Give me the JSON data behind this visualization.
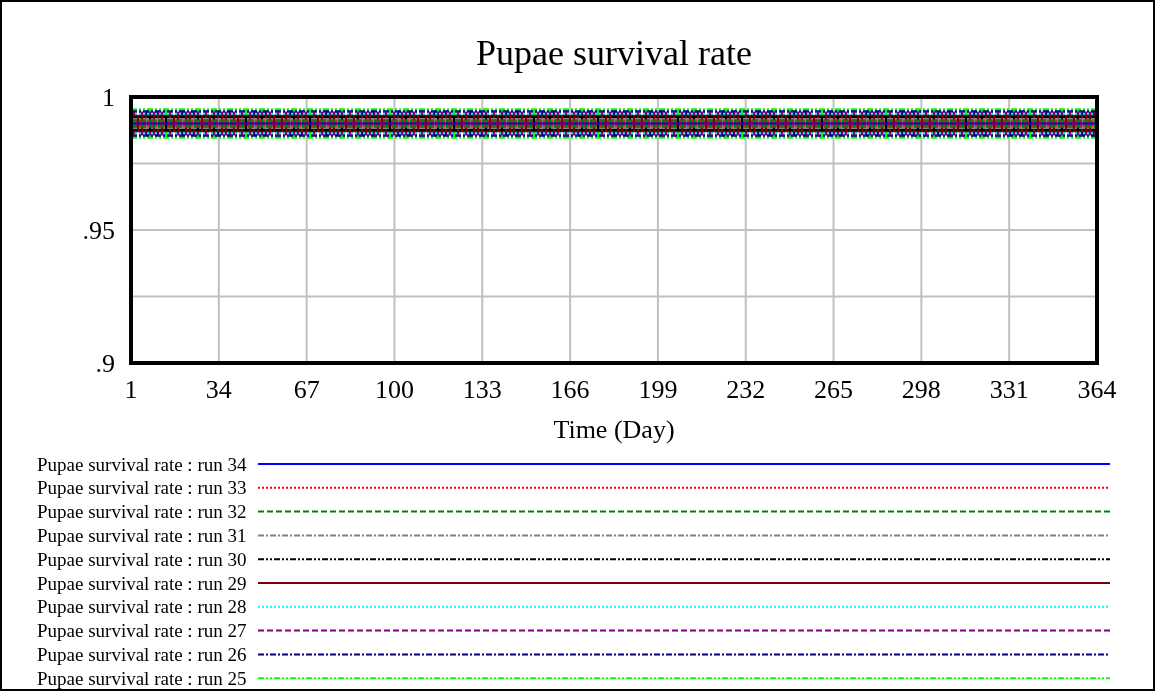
{
  "chart_data": {
    "type": "line",
    "title": "Pupae survival rate",
    "xlabel": "Time (Day)",
    "xlim": [
      1,
      364
    ],
    "xticks": [
      1,
      34,
      67,
      100,
      133,
      166,
      199,
      232,
      265,
      298,
      331,
      364
    ],
    "ylim": [
      0.9,
      1
    ],
    "yticks": [
      {
        "value": 0.9,
        "label": ".9"
      },
      {
        "value": 0.925,
        "label": null
      },
      {
        "value": 0.95,
        "label": ".95"
      },
      {
        "value": 0.975,
        "label": null
      },
      1
    ],
    "grid": true,
    "legend": "bottom",
    "x": [
      1,
      364
    ],
    "series": [
      {
        "name": "Pupae survival rate : run 34",
        "color": "#0000ff",
        "line_style": "solid",
        "values": [
          0.99,
          0.99
        ]
      },
      {
        "name": "Pupae survival rate : run 33",
        "color": "#ff0000",
        "line_style": "dotted",
        "values": [
          0.99,
          0.99
        ]
      },
      {
        "name": "Pupae survival rate : run 32",
        "color": "#008000",
        "line_style": "dashed",
        "values": [
          0.99,
          0.99
        ]
      },
      {
        "name": "Pupae survival rate : run 31",
        "color": "#808080",
        "line_style": "dashdot",
        "values": [
          0.99,
          0.99
        ]
      },
      {
        "name": "Pupae survival rate : run 30",
        "color": "#000000",
        "line_style": "dashdotdot",
        "values": [
          0.99,
          0.99
        ]
      },
      {
        "name": "Pupae survival rate : run 29",
        "color": "#800000",
        "line_style": "solid",
        "values": [
          0.99,
          0.99
        ]
      },
      {
        "name": "Pupae survival rate : run 28",
        "color": "#00ffff",
        "line_style": "dotted",
        "values": [
          0.99,
          0.99
        ]
      },
      {
        "name": "Pupae survival rate : run 27",
        "color": "#800080",
        "line_style": "dashed",
        "values": [
          0.99,
          0.99
        ]
      },
      {
        "name": "Pupae survival rate : run 26",
        "color": "#000080",
        "line_style": "dashdot",
        "values": [
          0.99,
          0.99
        ]
      },
      {
        "name": "Pupae survival rate : run 25",
        "color": "#00ff00",
        "line_style": "dashdotdot",
        "values": [
          0.99,
          0.99
        ]
      }
    ]
  }
}
